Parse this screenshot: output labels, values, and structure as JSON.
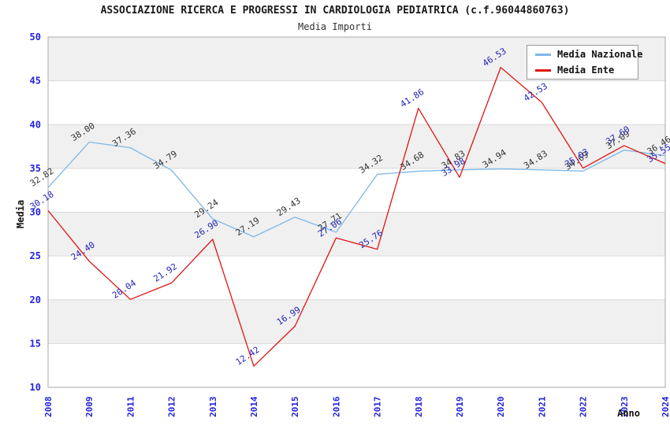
{
  "title": "ASSOCIAZIONE RICERCA E PROGRESSI IN CARDIOLOGIA PEDIATRICA (c.f.96044860763)",
  "subtitle": "Media Importi",
  "chart_data": {
    "type": "line",
    "title": "ASSOCIAZIONE RICERCA E PROGRESSI IN CARDIOLOGIA PEDIATRICA (c.f.96044860763)",
    "subtitle": "Media Importi",
    "xlabel": "Anno",
    "ylabel": "Media",
    "ylim": [
      10,
      50
    ],
    "yticks": [
      50,
      45,
      40,
      35,
      30,
      25,
      20,
      15,
      10
    ],
    "grid": "horizontal-bands-alternating",
    "legend_position": "top-right-inside",
    "categories": [
      "2008",
      "2009",
      "2011",
      "2012",
      "2013",
      "2014",
      "2015",
      "2016",
      "2017",
      "2018",
      "2019",
      "2020",
      "2021",
      "2022",
      "2023",
      "2024"
    ],
    "series": [
      {
        "name": "Media Nazionale",
        "color": "#7db8e8",
        "label_color": "#333333",
        "values": [
          32.82,
          38.0,
          37.36,
          34.79,
          29.24,
          27.19,
          29.43,
          27.71,
          34.32,
          34.68,
          34.83,
          34.94,
          34.83,
          34.69,
          37.09,
          36.46
        ]
      },
      {
        "name": "Media Ente",
        "color": "#e01414",
        "label_color": "#2323b8",
        "values": [
          30.18,
          24.4,
          20.04,
          21.92,
          26.9,
          12.42,
          16.99,
          27.06,
          25.76,
          41.86,
          33.98,
          46.53,
          42.53,
          35.03,
          37.6,
          35.55
        ]
      }
    ],
    "colors": {
      "tick_label": "#2222dd",
      "axis_title": "#111111",
      "band_fill": "#f0f0f0",
      "gridline": "#d9d9d9",
      "plot_border": "#aaaaaa",
      "background": "#ffffff"
    }
  }
}
